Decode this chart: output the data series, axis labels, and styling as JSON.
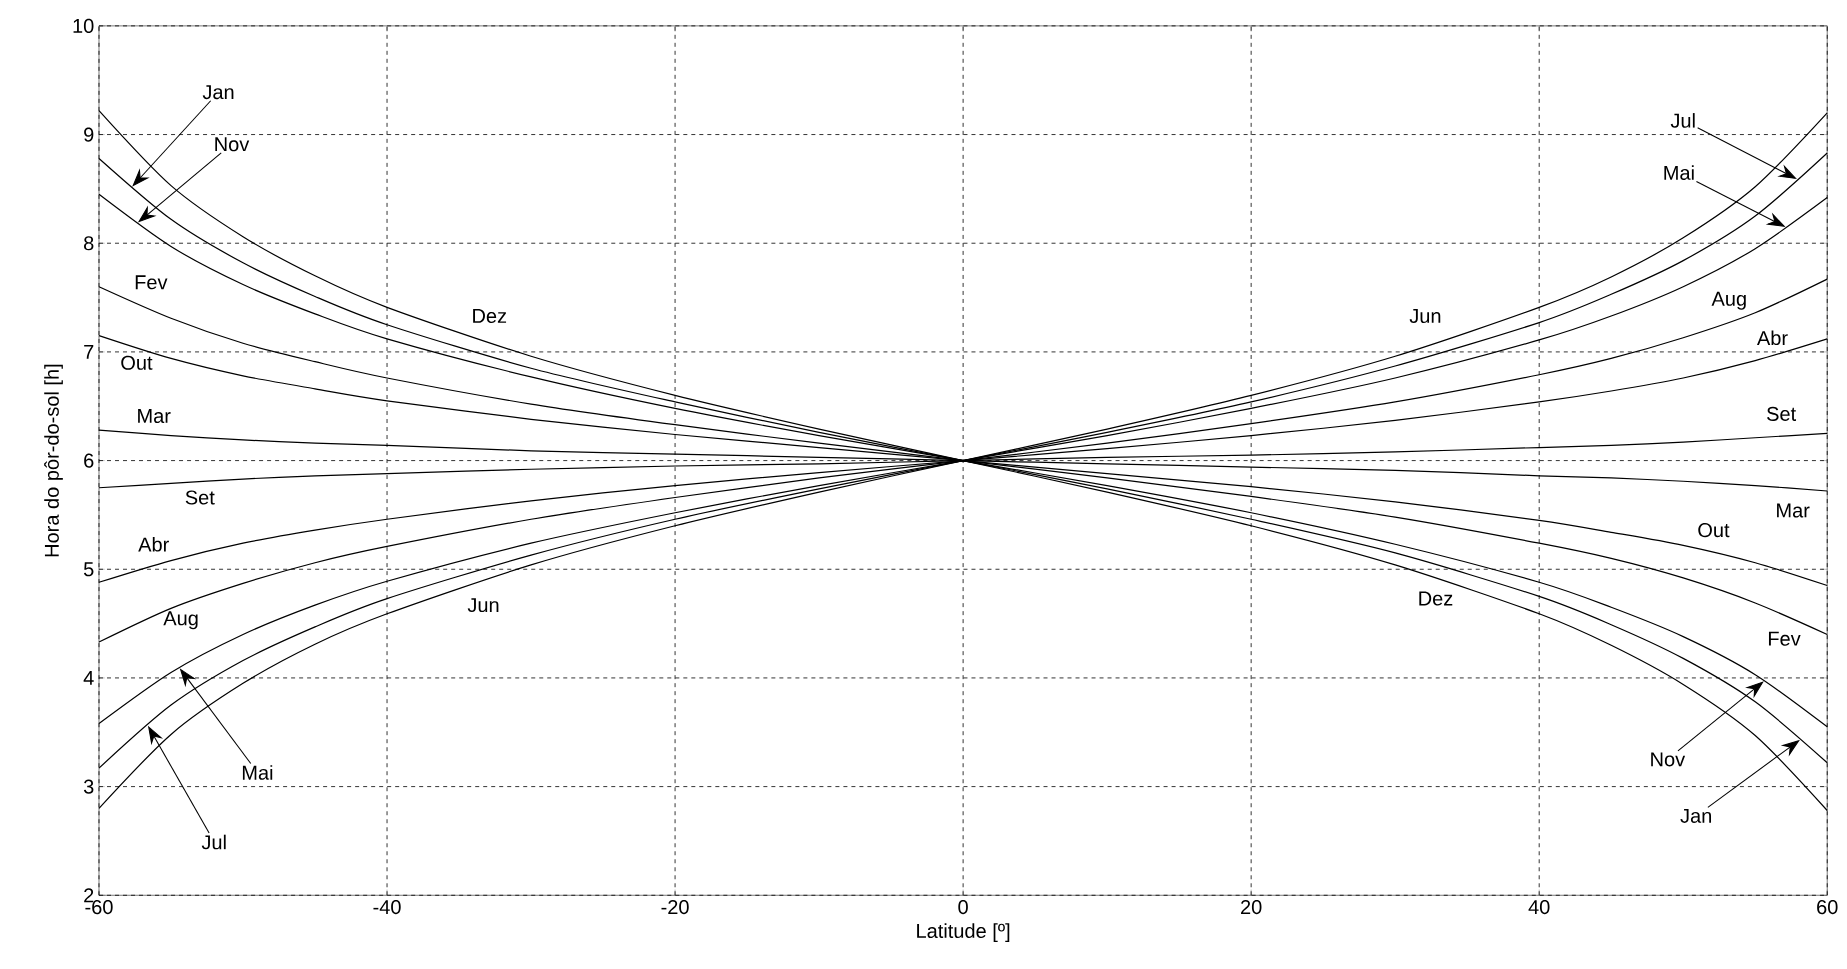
{
  "chart_data": {
    "type": "line",
    "xlabel": "Latitude [º]",
    "ylabel": "Hora do pôr-do-sol [h]",
    "x": [
      -60,
      -55,
      -50,
      -45,
      -40,
      -30,
      -20,
      -10,
      0,
      10,
      20,
      30,
      40,
      45,
      50,
      55,
      60
    ],
    "xlim": [
      -60,
      60
    ],
    "ylim": [
      2,
      10
    ],
    "xticks": [
      -60,
      -40,
      -20,
      0,
      20,
      40,
      60
    ],
    "yticks": [
      2,
      3,
      4,
      5,
      6,
      7,
      8,
      9,
      10
    ],
    "grid": true,
    "series": [
      {
        "color": "#000000",
        "values": [
          9.22,
          8.53,
          8.06,
          7.7,
          7.41,
          6.96,
          6.6,
          6.29,
          6,
          5.71,
          5.4,
          5.04,
          4.59,
          4.3,
          3.94,
          3.47,
          2.78
        ]
      },
      {
        "color": "#000000",
        "values": [
          8.78,
          8.22,
          7.82,
          7.51,
          7.25,
          6.85,
          6.54,
          6.26,
          6,
          5.74,
          5.46,
          5.15,
          4.75,
          4.49,
          4.18,
          3.78,
          3.22
        ]
      },
      {
        "color": "#000000",
        "values": [
          8.45,
          7.97,
          7.62,
          7.35,
          7.12,
          6.77,
          6.48,
          6.23,
          6,
          5.77,
          5.52,
          5.23,
          4.88,
          4.65,
          4.38,
          4.03,
          3.55
        ]
      },
      {
        "color": "#000000",
        "values": [
          7.6,
          7.31,
          7.08,
          6.91,
          6.76,
          6.52,
          6.33,
          6.16,
          6,
          5.84,
          5.67,
          5.48,
          5.24,
          5.1,
          4.92,
          4.69,
          4.4
        ]
      },
      {
        "color": "#000000",
        "values": [
          7.15,
          6.94,
          6.78,
          6.66,
          6.55,
          6.38,
          6.24,
          6.12,
          6,
          5.88,
          5.76,
          5.62,
          5.45,
          5.34,
          5.22,
          5.06,
          4.85
        ]
      },
      {
        "color": "#000000",
        "values": [
          6.28,
          6.23,
          6.19,
          6.16,
          6.14,
          6.09,
          6.06,
          6.03,
          6,
          5.97,
          5.94,
          5.91,
          5.86,
          5.84,
          5.81,
          5.77,
          5.72
        ]
      },
      {
        "color": "#000000",
        "values": [
          5.75,
          5.79,
          5.83,
          5.86,
          5.88,
          5.92,
          5.95,
          5.97,
          6,
          6.03,
          6.05,
          6.08,
          6.12,
          6.14,
          6.17,
          6.21,
          6.25
        ]
      },
      {
        "color": "#000000",
        "values": [
          4.88,
          5.08,
          5.24,
          5.36,
          5.46,
          5.63,
          5.77,
          5.89,
          6,
          6.11,
          6.23,
          6.37,
          6.54,
          6.64,
          6.76,
          6.92,
          7.12
        ]
      },
      {
        "color": "#000000",
        "values": [
          4.33,
          4.64,
          4.87,
          5.06,
          5.21,
          5.46,
          5.66,
          5.84,
          6,
          6.16,
          6.34,
          6.54,
          6.79,
          6.94,
          7.13,
          7.36,
          7.67
        ]
      },
      {
        "color": "#000000",
        "values": [
          3.58,
          4.05,
          4.4,
          4.67,
          4.89,
          5.24,
          5.52,
          5.77,
          6,
          6.23,
          6.48,
          6.76,
          7.11,
          7.33,
          7.6,
          7.95,
          8.42
        ]
      },
      {
        "color": "#000000",
        "values": [
          3.17,
          3.75,
          4.16,
          4.47,
          4.73,
          5.13,
          5.46,
          5.74,
          6,
          6.26,
          6.54,
          6.87,
          7.27,
          7.53,
          7.84,
          8.25,
          8.83
        ]
      },
      {
        "color": "#000000",
        "values": [
          2.8,
          3.48,
          3.95,
          4.31,
          4.59,
          5.04,
          5.4,
          5.71,
          6,
          6.29,
          6.6,
          6.96,
          7.41,
          7.69,
          8.05,
          8.52,
          9.2
        ]
      }
    ],
    "annotations": [
      "Jan",
      "Nov",
      "Fev",
      "Out",
      "Mar",
      "Set",
      "Abr",
      "Aug",
      "Mai",
      "Jul",
      "Dez",
      "Jun",
      "Jun",
      "Jul",
      "Mai",
      "Aug",
      "Abr",
      "Set",
      "Mar",
      "Out",
      "Dez",
      "Fev",
      "Nov",
      "Jan"
    ]
  }
}
